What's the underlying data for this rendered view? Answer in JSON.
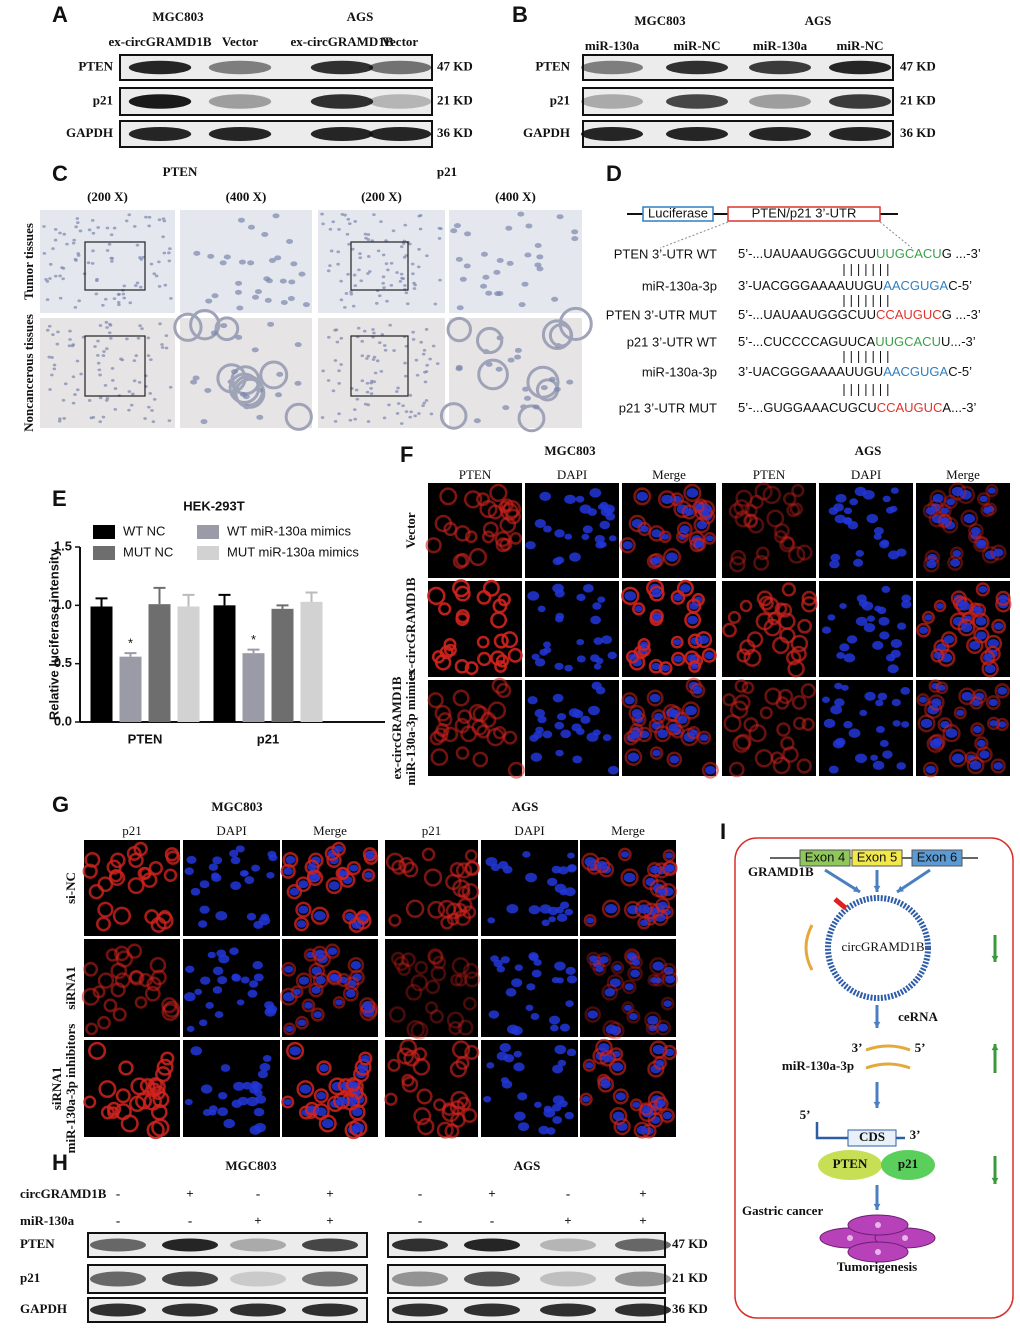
{
  "chart_data": {
    "type": "bar",
    "panel": "E",
    "title": "HEK-293T",
    "ylabel": "Relative luciferase intensity",
    "categories": [
      "PTEN",
      "p21"
    ],
    "series": [
      {
        "name": "WT NC",
        "color": "#000000",
        "values": [
          0.99,
          1.0
        ],
        "errors": [
          0.07,
          0.09
        ]
      },
      {
        "name": "WT miR-130a mimics",
        "color": "#9b9ba7",
        "values": [
          0.56,
          0.59
        ],
        "errors": [
          0.03,
          0.03
        ],
        "significance": [
          "*",
          "*"
        ]
      },
      {
        "name": "MUT NC",
        "color": "#6e6e6e",
        "values": [
          1.01,
          0.97
        ],
        "errors": [
          0.14,
          0.03
        ]
      },
      {
        "name": "MUT miR-130a mimics",
        "color": "#d2d2d2",
        "values": [
          0.99,
          1.03
        ],
        "errors": [
          0.1,
          0.08
        ]
      }
    ],
    "ylim": [
      0,
      1.5
    ],
    "yticks": [
      {
        "value": 0,
        "label": "0.0"
      },
      {
        "value": 0.5,
        "label": "0.5"
      },
      {
        "value": 1,
        "label": "1.0"
      },
      {
        "value": 1.5,
        "label": "1.5"
      }
    ],
    "legend": "top"
  },
  "panels": {
    "A": {
      "label": "A",
      "groups": [
        "MGC803",
        "AGS"
      ],
      "lanes": [
        "ex-circGRAMD1B",
        "Vector",
        "ex-circGRAMD1B",
        "Vector"
      ],
      "rows": [
        "PTEN",
        "p21",
        "GAPDH"
      ],
      "sizes": [
        "47 KD",
        "21 KD",
        "36 KD"
      ]
    },
    "B": {
      "label": "B",
      "groups": [
        "MGC803",
        "AGS"
      ],
      "lanes": [
        "miR-130a",
        "miR-NC",
        "miR-130a",
        "miR-NC"
      ],
      "rows": [
        "PTEN",
        "p21",
        "GAPDH"
      ],
      "sizes": [
        "47 KD",
        "21 KD",
        "36 KD"
      ]
    },
    "C": {
      "label": "C",
      "markers": [
        "PTEN",
        "p21"
      ],
      "magnifications": [
        "(200 X)",
        "(400 X)",
        "(200 X)",
        "(400 X)"
      ],
      "rows": [
        "Tumor tissues",
        "Noncancerous tissues"
      ]
    },
    "D": {
      "label": "D",
      "construct": [
        "Luciferase",
        "PTEN/p21 3’-UTR"
      ],
      "sequences": [
        {
          "name": "PTEN 3’-UTR WT",
          "prefix": "5’-...UAUAAUGGGCUU",
          "site": "UUGCACU",
          "suffix": "G ...-3’",
          "site_color": "#3aa14a"
        },
        {
          "name": "miR-130a-3p",
          "prefix": "3’-UACGGGAAAAUUGU",
          "site": "AACGUGA",
          "suffix": "C-5’",
          "site_color": "#2f7fc1"
        },
        {
          "name": "PTEN 3’-UTR MUT",
          "prefix": "5’-...UAUAAUGGGCUU",
          "site": "CCAUGUC",
          "suffix": "G ...-3’",
          "site_color": "#e0332b"
        },
        {
          "name": "p21 3’-UTR WT",
          "prefix": "5’-...CUCCCCAGUUCA",
          "site": "UUGCACU",
          "suffix": "U...-3’",
          "site_color": "#3aa14a"
        },
        {
          "name": "miR-130a-3p",
          "prefix": "3’-UACGGGAAAAUUGU",
          "site": "AACGUGA",
          "suffix": "C-5’",
          "site_color": "#2f7fc1"
        },
        {
          "name": "p21 3’-UTR MUT",
          "prefix": "5’-...GUGGAAACUGCU",
          "site": "CCAUGUC",
          "suffix": "A...-3’",
          "site_color": "#e0332b"
        }
      ]
    },
    "F": {
      "label": "F",
      "groups": [
        "MGC803",
        "AGS"
      ],
      "channels": [
        "PTEN",
        "DAPI",
        "Merge"
      ],
      "rows": [
        [
          "Vector"
        ],
        [
          "ex-circGRAMD1B"
        ],
        [
          "ex-circGRAMD1B",
          "miR-130a-3p mimics"
        ]
      ]
    },
    "G": {
      "label": "G",
      "groups": [
        "MGC803",
        "AGS"
      ],
      "channels": [
        "p21",
        "DAPI",
        "Merge"
      ],
      "rows": [
        [
          "si-NC"
        ],
        [
          "siRNA1"
        ],
        [
          "siRNA1",
          "miR-130a-3p inhibitors"
        ]
      ]
    },
    "H": {
      "label": "H",
      "groups": [
        "MGC803",
        "AGS"
      ],
      "treatments": [
        {
          "name": "circGRAMD1B",
          "signs": [
            "-",
            "+",
            "-",
            "+",
            "-",
            "+",
            "-",
            "+"
          ]
        },
        {
          "name": "miR-130a",
          "signs": [
            "-",
            "-",
            "+",
            "+",
            "-",
            "-",
            "+",
            "+"
          ]
        }
      ],
      "rows": [
        "PTEN",
        "p21",
        "GAPDH"
      ],
      "sizes": [
        "47 KD",
        "21 KD",
        "36 KD"
      ]
    },
    "I": {
      "label": "I",
      "gene": "GRAMD1B",
      "exons": [
        "Exon 4",
        "Exon 5",
        "Exon 6"
      ],
      "circrna": "circGRAMD1B",
      "mechanism": "ceRNA",
      "mirna": "miR-130a-3p",
      "mirna_ends": [
        "3’",
        "5’"
      ],
      "mrna_ends": [
        "5’",
        "3’"
      ],
      "cds": "CDS",
      "proteins": [
        "PTEN",
        "p21"
      ],
      "disease": "Gastric cancer",
      "outcome": "Tumorigenesis"
    }
  }
}
